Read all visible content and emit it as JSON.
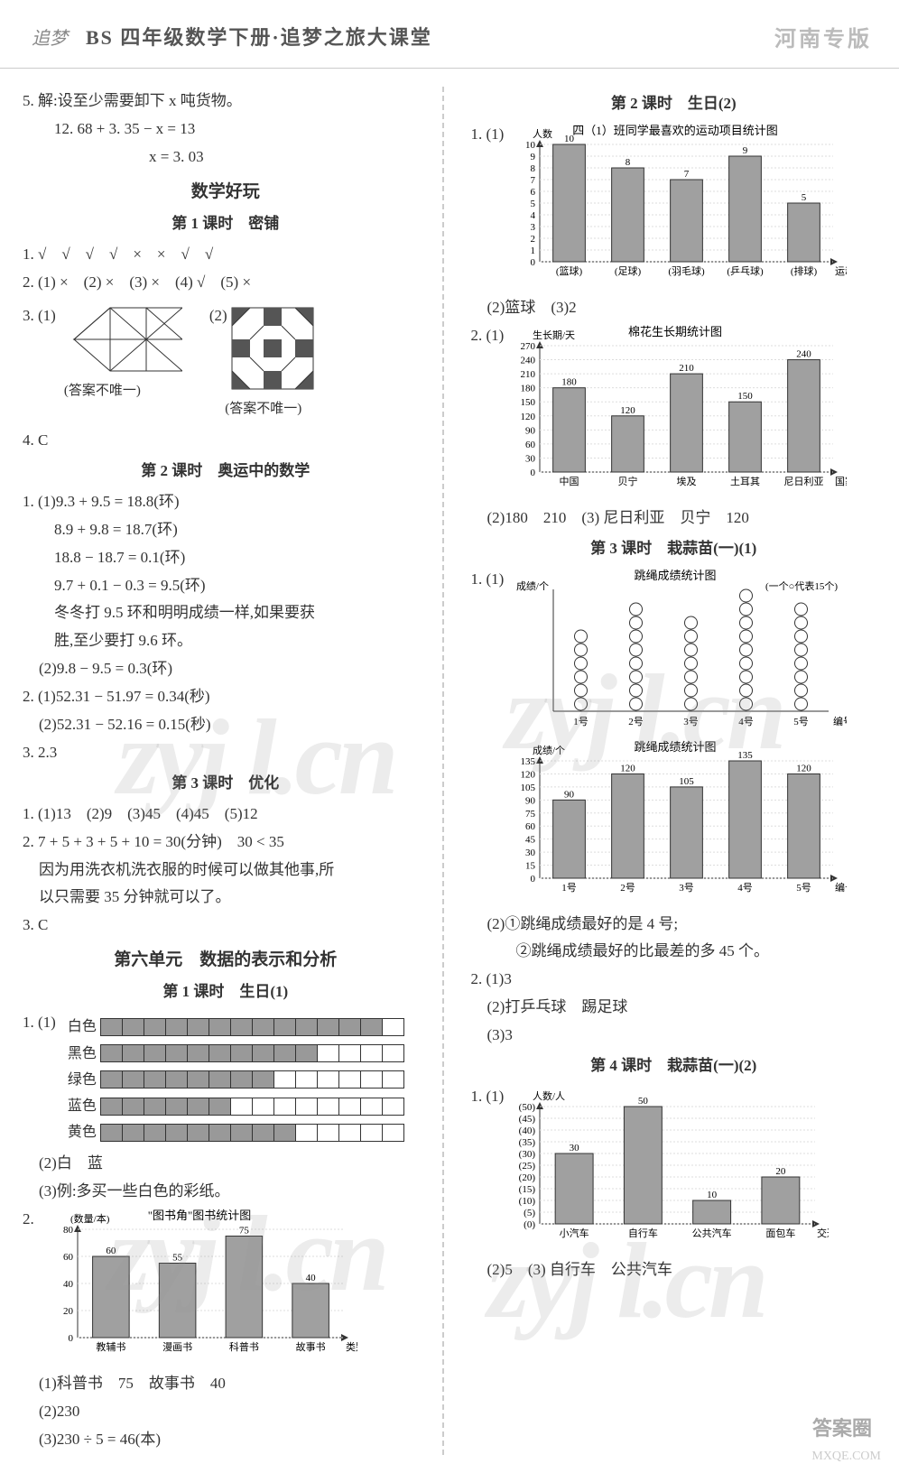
{
  "header": {
    "logo_text": "追梦",
    "title": "BS 四年级数学下册·追梦之旅大课堂",
    "right": "河南专版"
  },
  "left": {
    "q5": {
      "line1": "5. 解:设至少需要卸下 x 吨货物。",
      "line2": "12. 68 + 3. 35 − x = 13",
      "line3": "x = 3. 03"
    },
    "section_math_fun": "数学好玩",
    "lesson1_title": "第 1 课时　密铺",
    "l1_q1": "1. √　√　√　√　×　×　√　√",
    "l1_q2": "2. (1) ×　(2) ×　(3) ×　(4) √　(5) ×",
    "l1_q3_label": "3. (1)",
    "l1_q3_label2": "(2)",
    "l1_q3_caption": "(答案不唯一)",
    "l1_q4": "4. C",
    "lesson2_title": "第 2 课时　奥运中的数学",
    "l2_q1": {
      "a": "1. (1)9.3 + 9.5 = 18.8(环)",
      "b": "8.9 + 9.8 = 18.7(环)",
      "c": "18.8 − 18.7 = 0.1(环)",
      "d": "9.7 + 0.1 − 0.3 = 9.5(环)",
      "e": "冬冬打 9.5 环和明明成绩一样,如果要获",
      "f": "胜,至少要打 9.6 环。",
      "g": "(2)9.8 − 9.5 = 0.3(环)"
    },
    "l2_q2": {
      "a": "2. (1)52.31 − 51.97 = 0.34(秒)",
      "b": "(2)52.31 − 52.16 = 0.15(秒)"
    },
    "l2_q3": "3. 2.3",
    "lesson3_title": "第 3 课时　优化",
    "l3_q1": "1. (1)13　(2)9　(3)45　(4)45　(5)12",
    "l3_q2": {
      "a": "2. 7 + 5 + 3 + 5 + 10 = 30(分钟)　30 < 35",
      "b": "因为用洗衣机洗衣服的时候可以做其他事,所",
      "c": "以只需要 35 分钟就可以了。"
    },
    "l3_q3": "3. C",
    "unit6_title": "第六单元　数据的表示和分析",
    "u6_lesson1": "第 1 课时　生日(1)",
    "u6_q1_prefix": "1. (1)",
    "strips": {
      "labels": [
        "白色",
        "黑色",
        "绿色",
        "蓝色",
        "黄色"
      ],
      "values": [
        13,
        10,
        8,
        6,
        9
      ],
      "total": 14
    },
    "u6_q1_2": "(2)白　蓝",
    "u6_q1_3": "(3)例:多买一些白色的彩纸。",
    "u6_q2_prefix": "2.",
    "books_chart": {
      "title": "\"图书角\"图书统计图",
      "ylabel": "(数量/本)",
      "xlabel": "类别",
      "categories": [
        "教辅书",
        "漫画书",
        "科普书",
        "故事书"
      ],
      "values": [
        60,
        55,
        75,
        40
      ],
      "ymax": 80,
      "ystep": 20,
      "bar_color": "#a0a0a0"
    },
    "u6_q2_1": "(1)科普书　75　故事书　40",
    "u6_q2_2": "(2)230",
    "u6_q2_3": "(3)230 ÷ 5 = 46(本)"
  },
  "right": {
    "lesson2_title": "第 2 课时　生日(2)",
    "r_q1_prefix": "1. (1)",
    "sports_chart": {
      "title": "四（1）班同学最喜欢的运动项目统计图",
      "ylabel": "人数",
      "xlabel": "运动项目",
      "categories": [
        "(篮球)",
        "(足球)",
        "(羽毛球)",
        "(乒乓球)",
        "(排球)"
      ],
      "values": [
        10,
        8,
        7,
        9,
        5
      ],
      "ymax": 10,
      "ystep": 1,
      "bar_color": "#a0a0a0"
    },
    "r_q1_2": "(2)篮球　(3)2",
    "r_q2_prefix": "2. (1)",
    "cotton_chart": {
      "title": "棉花生长期统计图",
      "ylabel": "生长期/天",
      "xlabel": "国家",
      "categories": [
        "中国",
        "贝宁",
        "埃及",
        "土耳其",
        "尼日利亚"
      ],
      "values": [
        180,
        120,
        210,
        150,
        240
      ],
      "ymax": 270,
      "ystep": 30,
      "bar_color": "#a0a0a0"
    },
    "r_q2_2": "(2)180　210　(3) 尼日利亚　贝宁　120",
    "lesson3_title": "第 3 课时　栽蒜苗(一)(1)",
    "r3_q1_prefix": "1. (1)",
    "jump_dot": {
      "title": "跳绳成绩统计图",
      "ylabel": "成绩/个",
      "legend": "(一个○代表15个)",
      "categories": [
        "1号",
        "2号",
        "3号",
        "4号",
        "5号"
      ],
      "counts": [
        6,
        8,
        7,
        9,
        8
      ],
      "xlabel": "编号"
    },
    "jump_bar": {
      "title": "跳绳成绩统计图",
      "ylabel": "成绩/个",
      "categories": [
        "1号",
        "2号",
        "3号",
        "4号",
        "5号"
      ],
      "values": [
        90,
        120,
        105,
        135,
        120
      ],
      "ymax": 135,
      "ystep": 15,
      "xlabel": "编号",
      "bar_color": "#a0a0a0"
    },
    "r3_q1_2a": "(2)①跳绳成绩最好的是 4 号;",
    "r3_q1_2b": "②跳绳成绩最好的比最差的多 45 个。",
    "r3_q2_1": "2. (1)3",
    "r3_q2_2": "(2)打乒乓球　踢足球",
    "r3_q2_3": "(3)3",
    "lesson4_title": "第 4 课时　栽蒜苗(一)(2)",
    "r4_q1_prefix": "1. (1)",
    "vehicle_chart": {
      "ylabel": "人数/人",
      "categories": [
        "小汽车",
        "自行车",
        "公共汽车",
        "面包车"
      ],
      "values": [
        30,
        50,
        10,
        20
      ],
      "ymax": 50,
      "ystep": 5,
      "xlabel": "交通工具",
      "bar_color": "#a0a0a0"
    },
    "r4_q1_2": "(2)5　(3) 自行车　公共汽车"
  },
  "watermark": "zyj l.cn",
  "corner_badge": "答案圈",
  "corner_logo": "MXQE.COM"
}
